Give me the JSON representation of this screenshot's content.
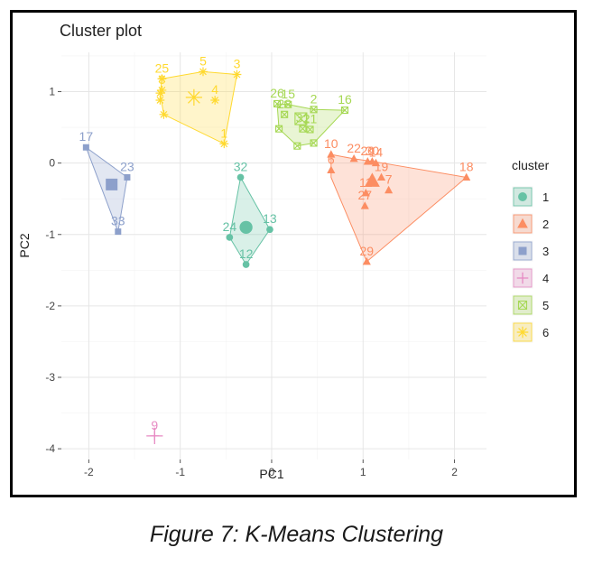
{
  "caption": "Figure 7: K-Means Clustering",
  "chart_data": {
    "type": "scatter",
    "title": "Cluster plot",
    "xlabel": "PC1",
    "ylabel": "PC2",
    "xlim": [
      -2.3,
      2.35
    ],
    "ylim": [
      -4.15,
      1.55
    ],
    "xticks": [
      -2,
      -1,
      0,
      1,
      2
    ],
    "yticks": [
      -4,
      -3,
      -2,
      -1,
      0,
      1
    ],
    "grid": true,
    "legend": {
      "title": "cluster",
      "position": "right",
      "entries": [
        "1",
        "2",
        "3",
        "4",
        "5",
        "6"
      ]
    },
    "clusters": [
      {
        "name": "1",
        "color": "#66c2a5",
        "marker": "circle",
        "centroid": [
          -0.28,
          -0.9
        ],
        "hull": [
          [
            -0.34,
            -0.2
          ],
          [
            -0.02,
            -0.93
          ],
          [
            -0.28,
            -1.42
          ],
          [
            -0.46,
            -1.04
          ]
        ],
        "points": [
          {
            "label": "32",
            "x": -0.34,
            "y": -0.2
          },
          {
            "label": "13",
            "x": -0.02,
            "y": -0.93
          },
          {
            "label": "24",
            "x": -0.46,
            "y": -1.04
          },
          {
            "label": "12",
            "x": -0.28,
            "y": -1.42
          }
        ]
      },
      {
        "name": "2",
        "color": "#fc8d62",
        "marker": "triangle",
        "centroid": [
          1.1,
          -0.25
        ],
        "hull": [
          [
            0.65,
            0.12
          ],
          [
            0.9,
            0.06
          ],
          [
            1.12,
            0.02
          ],
          [
            2.13,
            -0.2
          ],
          [
            1.04,
            -1.38
          ],
          [
            0.65,
            -0.2
          ]
        ],
        "points": [
          {
            "label": "10",
            "x": 0.65,
            "y": 0.12
          },
          {
            "label": "6",
            "x": 0.65,
            "y": -0.1
          },
          {
            "label": "22",
            "x": 0.9,
            "y": 0.06
          },
          {
            "label": "20",
            "x": 1.05,
            "y": 0.02
          },
          {
            "label": "30",
            "x": 1.1,
            "y": 0.02
          },
          {
            "label": "14",
            "x": 1.14,
            "y": 0.0
          },
          {
            "label": "19",
            "x": 1.2,
            "y": -0.2
          },
          {
            "label": "11",
            "x": 1.03,
            "y": -0.42
          },
          {
            "label": "7",
            "x": 1.28,
            "y": -0.38
          },
          {
            "label": "27",
            "x": 1.02,
            "y": -0.6
          },
          {
            "label": "18",
            "x": 2.13,
            "y": -0.2
          },
          {
            "label": "29",
            "x": 1.04,
            "y": -1.38
          }
        ]
      },
      {
        "name": "3",
        "color": "#8da0cb",
        "marker": "square",
        "centroid": [
          -1.75,
          -0.3
        ],
        "hull": [
          [
            -2.03,
            0.22
          ],
          [
            -1.58,
            -0.2
          ],
          [
            -1.68,
            -0.96
          ]
        ],
        "points": [
          {
            "label": "17",
            "x": -2.03,
            "y": 0.22
          },
          {
            "label": "23",
            "x": -1.58,
            "y": -0.2
          },
          {
            "label": "33",
            "x": -1.68,
            "y": -0.96
          }
        ]
      },
      {
        "name": "4",
        "color": "#e78ac3",
        "marker": "plus",
        "centroid": [
          -1.28,
          -3.82
        ],
        "hull": [],
        "points": [
          {
            "label": "9",
            "x": -1.28,
            "y": -3.82
          }
        ]
      },
      {
        "name": "5",
        "color": "#a6d854",
        "marker": "square-cross",
        "centroid": [
          0.32,
          0.62
        ],
        "hull": [
          [
            0.06,
            0.83
          ],
          [
            0.18,
            0.82
          ],
          [
            0.46,
            0.75
          ],
          [
            0.8,
            0.74
          ],
          [
            0.46,
            0.28
          ],
          [
            0.28,
            0.24
          ],
          [
            0.08,
            0.48
          ]
        ],
        "points": [
          {
            "label": "26",
            "x": 0.06,
            "y": 0.83
          },
          {
            "label": "15",
            "x": 0.18,
            "y": 0.82
          },
          {
            "label": "2",
            "x": 0.46,
            "y": 0.75
          },
          {
            "label": "16",
            "x": 0.8,
            "y": 0.74
          },
          {
            "label": "28",
            "x": 0.14,
            "y": 0.68
          },
          {
            "label": "31",
            "x": 0.34,
            "y": 0.48
          },
          {
            "label": "21",
            "x": 0.42,
            "y": 0.47
          },
          {
            "label": "",
            "x": 0.08,
            "y": 0.48
          },
          {
            "label": "",
            "x": 0.28,
            "y": 0.24
          },
          {
            "label": "",
            "x": 0.46,
            "y": 0.28
          }
        ]
      },
      {
        "name": "6",
        "color": "#ffd92f",
        "marker": "asterisk",
        "centroid": [
          -0.85,
          0.92
        ],
        "hull": [
          [
            -1.2,
            1.18
          ],
          [
            -0.75,
            1.28
          ],
          [
            -0.38,
            1.24
          ],
          [
            -0.52,
            0.27
          ],
          [
            -1.18,
            0.68
          ],
          [
            -1.22,
            0.98
          ]
        ],
        "points": [
          {
            "label": "25",
            "x": -1.2,
            "y": 1.18
          },
          {
            "label": "5",
            "x": -0.75,
            "y": 1.28
          },
          {
            "label": "3",
            "x": -0.38,
            "y": 1.24
          },
          {
            "label": "8",
            "x": -1.2,
            "y": 1.02
          },
          {
            "label": "",
            "x": -1.22,
            "y": 0.98
          },
          {
            "label": "",
            "x": -1.22,
            "y": 0.88
          },
          {
            "label": "4",
            "x": -0.62,
            "y": 0.88
          },
          {
            "label": "",
            "x": -1.18,
            "y": 0.68
          },
          {
            "label": "1",
            "x": -0.52,
            "y": 0.27
          }
        ]
      }
    ]
  }
}
